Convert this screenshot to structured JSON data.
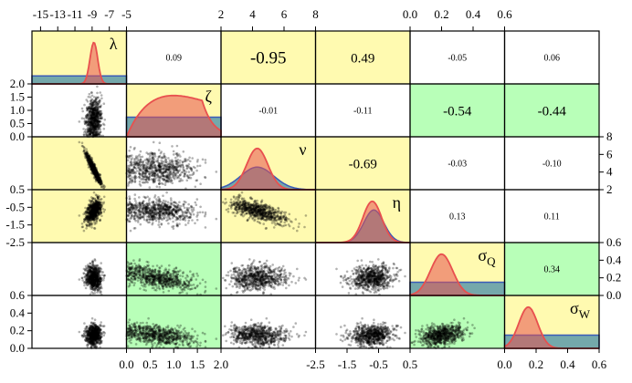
{
  "chart_data": {
    "type": "scatter",
    "title": "",
    "variables": [
      {
        "name": "λ",
        "sub": "",
        "mean": -8.8,
        "sd": 0.45,
        "range": [
          -16,
          -5
        ],
        "ticks": [
          -15,
          -13,
          -11,
          -9,
          -7,
          -5
        ],
        "tick_labels": [
          "-15",
          "-13",
          "-11",
          "-9",
          "-7",
          "-5"
        ]
      },
      {
        "name": "ζ",
        "sub": "",
        "mean": 0.65,
        "sd": 0.42,
        "range": [
          0,
          2
        ],
        "ticks": [
          0,
          0.5,
          1,
          1.5,
          2
        ],
        "tick_labels": [
          "0.0",
          "0.5",
          "1.0",
          "1.5",
          "2.0"
        ]
      },
      {
        "name": "ν",
        "sub": "",
        "mean": 4.3,
        "sd": 0.9,
        "range": [
          2,
          8
        ],
        "ticks": [
          2,
          4,
          6,
          8
        ],
        "tick_labels": [
          "2",
          "4",
          "6",
          "8"
        ]
      },
      {
        "name": "η",
        "sub": "",
        "mean": -0.7,
        "sd": 0.35,
        "range": [
          -2.5,
          0.5
        ],
        "ticks": [
          -2.5,
          -1.5,
          -0.5,
          0.5
        ],
        "tick_labels": [
          "-2.5",
          "-1.5",
          "-0.5",
          "0.5"
        ]
      },
      {
        "name": "σ",
        "sub": "Q",
        "mean": 0.2,
        "sd": 0.07,
        "range": [
          0,
          0.6
        ],
        "ticks": [
          0,
          0.2,
          0.4,
          0.6
        ],
        "tick_labels": [
          "0.0",
          "0.2",
          "0.4",
          "0.6"
        ]
      },
      {
        "name": "σ",
        "sub": "W",
        "mean": 0.15,
        "sd": 0.06,
        "range": [
          0,
          0.6
        ],
        "ticks": [
          0,
          0.2,
          0.4,
          0.6
        ],
        "tick_labels": [
          "0.0",
          "0.2",
          "0.4",
          "0.6"
        ]
      }
    ],
    "correlations": [
      {
        "row": 0,
        "col": 1,
        "value": 0.09,
        "label": "0.09",
        "size": "small"
      },
      {
        "row": 0,
        "col": 2,
        "value": -0.95,
        "label": "-0.95",
        "size": "large"
      },
      {
        "row": 0,
        "col": 3,
        "value": 0.49,
        "label": "0.49",
        "size": "medium"
      },
      {
        "row": 0,
        "col": 4,
        "value": -0.05,
        "label": "-0.05",
        "size": "small"
      },
      {
        "row": 0,
        "col": 5,
        "value": 0.06,
        "label": "0.06",
        "size": "small"
      },
      {
        "row": 1,
        "col": 2,
        "value": -0.01,
        "label": "-0.01",
        "size": "small"
      },
      {
        "row": 1,
        "col": 3,
        "value": -0.11,
        "label": "-0.11",
        "size": "small"
      },
      {
        "row": 1,
        "col": 4,
        "value": -0.54,
        "label": "-0.54",
        "size": "medium"
      },
      {
        "row": 1,
        "col": 5,
        "value": -0.44,
        "label": "-0.44",
        "size": "medium"
      },
      {
        "row": 2,
        "col": 3,
        "value": -0.69,
        "label": "-0.69",
        "size": "medium"
      },
      {
        "row": 2,
        "col": 4,
        "value": -0.03,
        "label": "-0.03",
        "size": "small"
      },
      {
        "row": 2,
        "col": 5,
        "value": -0.1,
        "label": "-0.10",
        "size": "small"
      },
      {
        "row": 3,
        "col": 4,
        "value": 0.13,
        "label": "0.13",
        "size": "small"
      },
      {
        "row": 3,
        "col": 5,
        "value": 0.11,
        "label": "0.11",
        "size": "small"
      },
      {
        "row": 4,
        "col": 5,
        "value": 0.34,
        "label": "0.34",
        "size": "small"
      }
    ],
    "cell_colors": {
      "yellow": "#fffab0",
      "green": "#b8ffb8",
      "white": "#ffffff"
    },
    "cell_color_map": [
      [
        "yellow",
        "white",
        "yellow",
        "yellow",
        "white",
        "white"
      ],
      [
        "white",
        "yellow",
        "white",
        "white",
        "green",
        "green"
      ],
      [
        "yellow",
        "white",
        "yellow",
        "yellow",
        "white",
        "white"
      ],
      [
        "yellow",
        "white",
        "yellow",
        "yellow",
        "white",
        "white"
      ],
      [
        "white",
        "green",
        "white",
        "white",
        "yellow",
        "green"
      ],
      [
        "white",
        "green",
        "white",
        "white",
        "green",
        "yellow"
      ]
    ],
    "colors": {
      "posterior": "#e8504e",
      "posterior_fill": "rgba(232,80,78,0.55)",
      "prior": "#3a5bb8",
      "prior_fill": "rgba(70,140,170,0.75)",
      "points": "rgba(0,0,0,0.3)"
    },
    "axis_sides": {
      "top": [
        0,
        2,
        4
      ],
      "bottom": [
        1,
        3,
        5
      ],
      "left": [
        1,
        3,
        5
      ],
      "right": [
        2,
        4
      ]
    },
    "grid": false,
    "legend": "none"
  }
}
